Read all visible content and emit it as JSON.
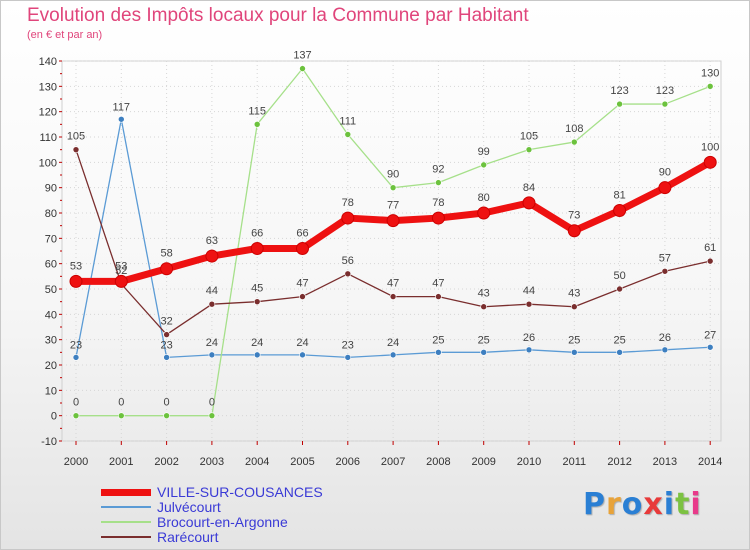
{
  "header": {
    "title": "Evolution des Impôts locaux pour la Commune par Habitant",
    "subtitle": "(en € et par an)"
  },
  "chart_data": {
    "type": "line",
    "x": [
      "2000",
      "2001",
      "2002",
      "2003",
      "2004",
      "2005",
      "2006",
      "2007",
      "2008",
      "2009",
      "2010",
      "2011",
      "2012",
      "2013",
      "2014"
    ],
    "ylim": [
      -10,
      140
    ],
    "yticks": [
      -10,
      0,
      10,
      20,
      30,
      40,
      50,
      60,
      70,
      80,
      90,
      100,
      110,
      120,
      130,
      140
    ],
    "grid": true,
    "legend_position": "bottom-left",
    "series": [
      {
        "name": "Julvécourt",
        "color": "#5b9bd5",
        "dot": "#3d7fc0",
        "values": [
          23,
          117,
          23,
          24,
          24,
          24,
          23,
          24,
          25,
          25,
          26,
          25,
          25,
          26,
          27
        ]
      },
      {
        "name": "Brocourt-en-Argonne",
        "color": "#a6e08a",
        "dot": "#6cc23d",
        "values": [
          0,
          0,
          0,
          0,
          115,
          137,
          111,
          90,
          92,
          99,
          105,
          108,
          123,
          123,
          130
        ]
      },
      {
        "name": "Rarécourt",
        "color": "#7a2e2e",
        "dot": "#7a2e2e",
        "values": [
          105,
          52,
          32,
          44,
          45,
          47,
          56,
          47,
          47,
          43,
          44,
          43,
          50,
          57,
          61
        ]
      },
      {
        "name": "VILLE-SUR-COUSANCES",
        "color": "#ee1111",
        "dot": "#ee1111",
        "values": [
          53,
          53,
          58,
          63,
          66,
          66,
          78,
          77,
          78,
          80,
          84,
          73,
          81,
          90,
          100
        ]
      }
    ]
  },
  "legend": [
    {
      "label": "VILLE-SUR-COUSANCES",
      "color": "#ee1111"
    },
    {
      "label": "Julvécourt",
      "color": "#5b9bd5"
    },
    {
      "label": "Brocourt-en-Argonne",
      "color": "#a6e08a"
    },
    {
      "label": "Rarécourt",
      "color": "#7a2e2e"
    }
  ],
  "logo": {
    "letters": [
      "P",
      "r",
      "o",
      "x",
      "i",
      "t",
      "i"
    ],
    "colors": [
      "#2a7fd4",
      "#e8a33a",
      "#2a7fd4",
      "#e83a3a",
      "#2a7fd4",
      "#7cc242",
      "#e83a8a"
    ]
  }
}
